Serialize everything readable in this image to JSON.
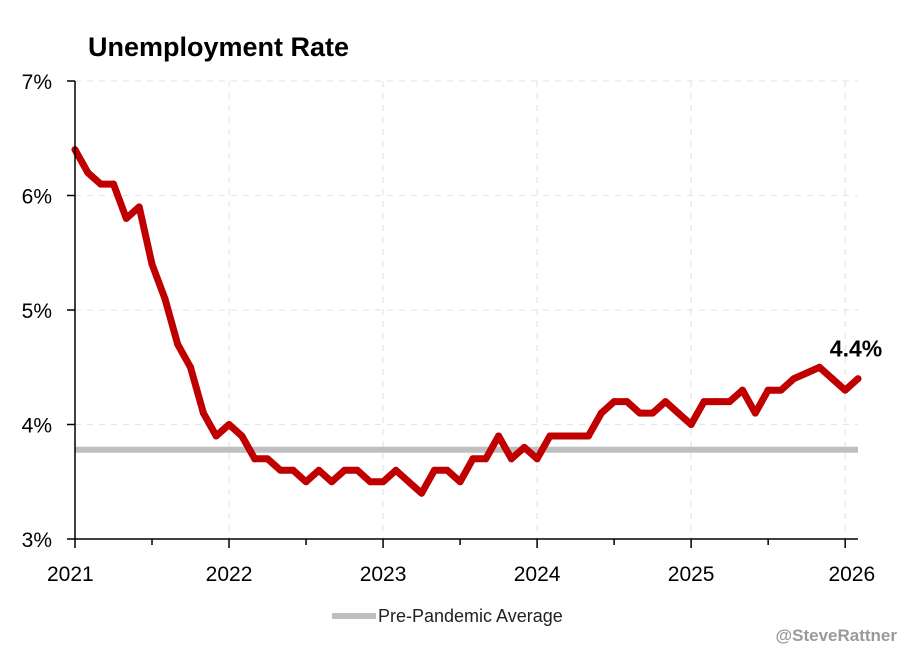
{
  "chart_data": {
    "type": "line",
    "title": "Unemployment Rate",
    "xlabel": "",
    "ylabel": "",
    "x_start": "2021-01",
    "x_ticks": [
      "2021",
      "2022",
      "2023",
      "2024",
      "2025",
      "2026"
    ],
    "xlim": [
      "2021-01",
      "2026-02"
    ],
    "ylim": [
      3,
      7
    ],
    "y_ticks": [
      "3%",
      "4%",
      "5%",
      "6%",
      "7%"
    ],
    "grid": true,
    "series": [
      {
        "color": "#c00000",
        "values": [
          6.4,
          6.2,
          6.1,
          6.1,
          5.8,
          5.9,
          5.4,
          5.1,
          4.7,
          4.5,
          4.1,
          3.9,
          4.0,
          3.9,
          3.7,
          3.7,
          3.6,
          3.6,
          3.5,
          3.6,
          3.5,
          3.6,
          3.6,
          3.5,
          3.5,
          3.6,
          3.5,
          3.4,
          3.6,
          3.6,
          3.5,
          3.7,
          3.7,
          3.9,
          3.7,
          3.8,
          3.7,
          3.9,
          3.9,
          3.9,
          3.9,
          4.1,
          4.2,
          4.2,
          4.1,
          4.1,
          4.2,
          4.1,
          4.0,
          4.2,
          4.2,
          4.2,
          4.3,
          4.1,
          4.3,
          4.3,
          4.4,
          4.45,
          4.5,
          4.4,
          4.3,
          4.4
        ]
      }
    ],
    "reference_line": {
      "name": "Pre-Pandemic Average",
      "value": 3.78,
      "color": "#bfbfbf"
    },
    "end_label": "4.4%",
    "legend_position": "bottom-center"
  },
  "credit": "@SteveRattner"
}
